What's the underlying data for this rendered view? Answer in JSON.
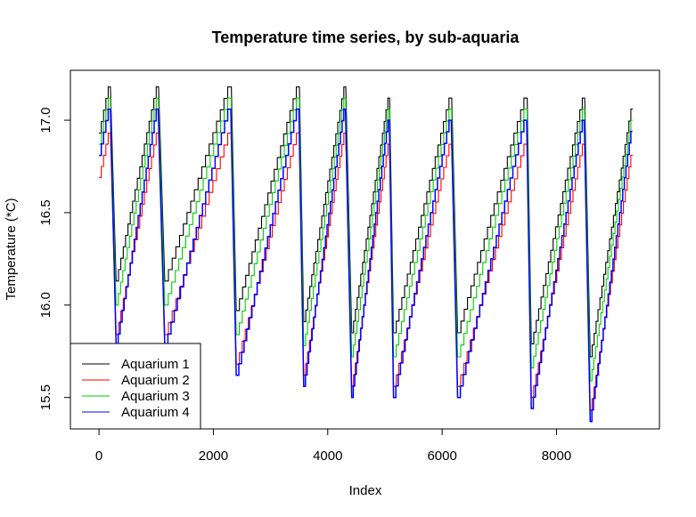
{
  "chart_data": {
    "type": "line",
    "title": "Temperature time series, by sub-aquaria",
    "xlabel": "Index",
    "ylabel": "Temperature (*C)",
    "xlim": [
      -500,
      9800
    ],
    "ylim": [
      15.33,
      17.27
    ],
    "x_ticks": [
      0,
      2000,
      4000,
      6000,
      8000
    ],
    "x_tick_labels": [
      "0",
      "2000",
      "4000",
      "6000",
      "8000"
    ],
    "y_ticks": [
      15.5,
      16.0,
      16.5,
      17.0
    ],
    "y_tick_labels": [
      "15.5",
      "16.0",
      "16.5",
      "17.0"
    ],
    "legend_position": "bottom-left",
    "grid": false,
    "cycles": [
      {
        "start": 0,
        "peak": 160,
        "trough": 300,
        "peak_temp": 17.18,
        "trough_temp": 15.78
      },
      {
        "start": 300,
        "peak": 1000,
        "trough": 1150,
        "peak_temp": 17.18,
        "trough_temp": 15.78
      },
      {
        "start": 1150,
        "peak": 2250,
        "trough": 2400,
        "peak_temp": 17.18,
        "trough_temp": 15.62
      },
      {
        "start": 2400,
        "peak": 3450,
        "trough": 3580,
        "peak_temp": 17.18,
        "trough_temp": 15.56
      },
      {
        "start": 3580,
        "peak": 4280,
        "trough": 4420,
        "peak_temp": 17.18,
        "trough_temp": 15.5
      },
      {
        "start": 4420,
        "peak": 5050,
        "trough": 5150,
        "peak_temp": 17.12,
        "trough_temp": 15.5
      },
      {
        "start": 5150,
        "peak": 6120,
        "trough": 6270,
        "peak_temp": 17.12,
        "trough_temp": 15.5
      },
      {
        "start": 6270,
        "peak": 7430,
        "trough": 7560,
        "peak_temp": 17.12,
        "trough_temp": 15.44
      },
      {
        "start": 7560,
        "peak": 8450,
        "trough": 8590,
        "peak_temp": 17.12,
        "trough_temp": 15.37
      },
      {
        "start": 8590,
        "peak": 9300,
        "trough": 9300,
        "peak_temp": 17.06,
        "trough_temp": 17.06
      }
    ],
    "step_size": 0.0625,
    "series": [
      {
        "name": "Aquarium 1",
        "color": "#000000",
        "offset": 0.0,
        "trough_offset": 0.35,
        "start_temp": 16.93
      },
      {
        "name": "Aquarium 2",
        "color": "#ff0000",
        "offset": -0.25,
        "trough_offset": 0.06,
        "start_temp": 16.69
      },
      {
        "name": "Aquarium 3",
        "color": "#00cd00",
        "offset": -0.06,
        "trough_offset": 0.22,
        "start_temp": 16.87
      },
      {
        "name": "Aquarium 4",
        "color": "#0000ff",
        "offset": -0.12,
        "trough_offset": 0.0,
        "start_temp": 16.81
      }
    ]
  }
}
